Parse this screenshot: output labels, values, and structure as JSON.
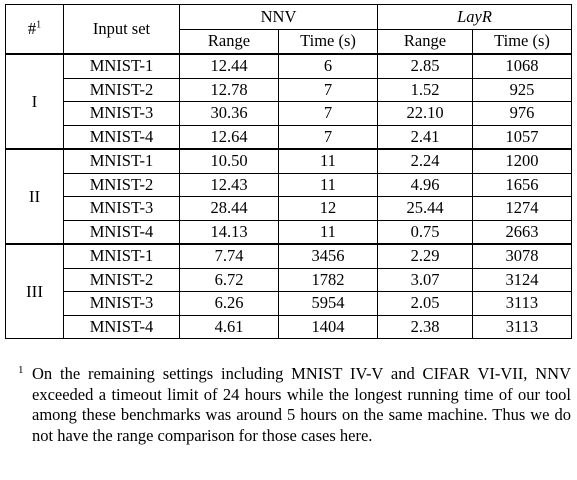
{
  "table": {
    "header": {
      "index_col": "#",
      "index_col_sup": "1",
      "input_col": "Input set",
      "tool1": "NNV",
      "tool2": "LayR",
      "sub_range": "Range",
      "sub_time": "Time (s)"
    },
    "groups": [
      {
        "label": "I",
        "rows": [
          {
            "input": "MNIST-1",
            "nnv_range": "12.44",
            "nnv_time": "6",
            "layr_range": "2.85",
            "layr_time": "1068"
          },
          {
            "input": "MNIST-2",
            "nnv_range": "12.78",
            "nnv_time": "7",
            "layr_range": "1.52",
            "layr_time": "925"
          },
          {
            "input": "MNIST-3",
            "nnv_range": "30.36",
            "nnv_time": "7",
            "layr_range": "22.10",
            "layr_time": "976"
          },
          {
            "input": "MNIST-4",
            "nnv_range": "12.64",
            "nnv_time": "7",
            "layr_range": "2.41",
            "layr_time": "1057"
          }
        ]
      },
      {
        "label": "II",
        "rows": [
          {
            "input": "MNIST-1",
            "nnv_range": "10.50",
            "nnv_time": "11",
            "layr_range": "2.24",
            "layr_time": "1200"
          },
          {
            "input": "MNIST-2",
            "nnv_range": "12.43",
            "nnv_time": "11",
            "layr_range": "4.96",
            "layr_time": "1656"
          },
          {
            "input": "MNIST-3",
            "nnv_range": "28.44",
            "nnv_time": "12",
            "layr_range": "25.44",
            "layr_time": "1274"
          },
          {
            "input": "MNIST-4",
            "nnv_range": "14.13",
            "nnv_time": "11",
            "layr_range": "0.75",
            "layr_time": "2663"
          }
        ]
      },
      {
        "label": "III",
        "rows": [
          {
            "input": "MNIST-1",
            "nnv_range": "7.74",
            "nnv_time": "3456",
            "layr_range": "2.29",
            "layr_time": "3078"
          },
          {
            "input": "MNIST-2",
            "nnv_range": "6.72",
            "nnv_time": "1782",
            "layr_range": "3.07",
            "layr_time": "3124"
          },
          {
            "input": "MNIST-3",
            "nnv_range": "6.26",
            "nnv_time": "5954",
            "layr_range": "2.05",
            "layr_time": "3113"
          },
          {
            "input": "MNIST-4",
            "nnv_range": "4.61",
            "nnv_time": "1404",
            "layr_range": "2.38",
            "layr_time": "3113"
          }
        ]
      }
    ]
  },
  "footnote": {
    "number": "1",
    "text": "On the remaining settings including MNIST IV-V and CIFAR VI-VII, NNV exceeded a timeout limit of 24 hours while the longest running time of our tool among these benchmarks was around 5 hours on the same machine. Thus we do not have the range comparison for those cases here."
  }
}
